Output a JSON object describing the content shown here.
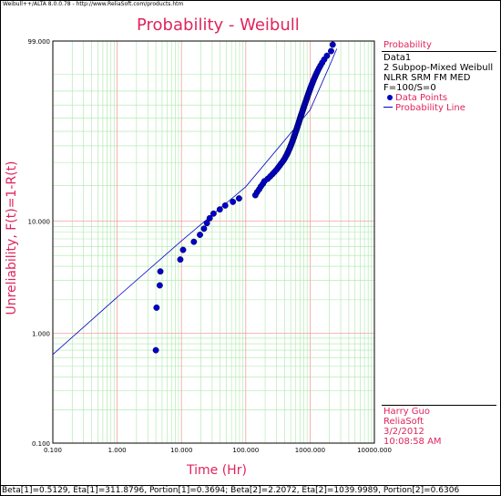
{
  "header": {
    "text": "Weibull++/ALTA 8.0.0.78 - http://www.ReliaSoft.com/products.htm"
  },
  "legend": {
    "title": "Probability",
    "lines": [
      "Data1",
      "2 Subpop-Mixed Weibull",
      "NLRR SRM FM MED",
      "F=100/S=0"
    ],
    "points_label": "Data Points",
    "line_label": "Probability Line"
  },
  "signature": {
    "name": "Harry Guo",
    "company": "ReliaSoft",
    "date": "3/2/2012",
    "time": "10:08:58 AM"
  },
  "footer": {
    "text": "Beta[1]=0.5129, Eta[1]=311.8796, Portion[1]=0.3694; Beta[2]=2.2072, Eta[2]=1039.9989, Portion[2]=0.6306"
  },
  "colors": {
    "accent": "#e0245e",
    "points": "#0000c8",
    "grid_major": "#f4a0a0",
    "grid_minor": "#a8e8a8"
  },
  "chart_data": {
    "type": "scatter",
    "title": "Probability - Weibull",
    "xlabel": "Time (Hr)",
    "ylabel": "Unreliability, F(t)=1-R(t)",
    "x_scale": "log",
    "y_scale": "weibull",
    "xlim": [
      0.1,
      10000
    ],
    "ylim": [
      0.1,
      99
    ],
    "x_ticks": [
      "0.100",
      "1.000",
      "10.000",
      "100.000",
      "1000.000",
      "10000.000"
    ],
    "y_ticks": [
      "0.100",
      "1.000",
      "10.000",
      "99.000"
    ],
    "grid": true,
    "legend_position": "right",
    "series": [
      {
        "name": "Data Points",
        "points": [
          [
            4.0,
            0.7
          ],
          [
            4.1,
            1.7
          ],
          [
            4.6,
            2.7
          ],
          [
            4.7,
            3.6
          ],
          [
            9.6,
            4.6
          ],
          [
            10.6,
            5.6
          ],
          [
            15.6,
            6.6
          ],
          [
            19.4,
            7.6
          ],
          [
            22.4,
            8.6
          ],
          [
            24.9,
            9.6
          ],
          [
            27.5,
            10.6
          ],
          [
            31.5,
            11.6
          ],
          [
            39.5,
            12.6
          ],
          [
            47.9,
            13.6
          ],
          [
            63.1,
            14.6
          ],
          [
            78.6,
            15.6
          ],
          [
            141,
            16.6
          ],
          [
            150,
            17.6
          ],
          [
            162,
            18.6
          ],
          [
            172,
            19.6
          ],
          [
            185,
            20.6
          ],
          [
            195,
            21.6
          ],
          [
            220,
            22.6
          ],
          [
            240,
            23.6
          ],
          [
            260,
            24.6
          ],
          [
            280,
            25.6
          ],
          [
            300,
            26.6
          ],
          [
            318,
            27.6
          ],
          [
            336,
            28.6
          ],
          [
            353,
            29.6
          ],
          [
            373,
            30.6
          ],
          [
            390,
            31.6
          ],
          [
            406,
            32.6
          ],
          [
            420,
            33.6
          ],
          [
            435,
            34.6
          ],
          [
            448,
            35.6
          ],
          [
            460,
            36.6
          ],
          [
            472,
            37.6
          ],
          [
            484,
            38.6
          ],
          [
            495,
            39.6
          ],
          [
            506,
            40.6
          ],
          [
            517,
            41.6
          ],
          [
            528,
            42.6
          ],
          [
            538,
            43.6
          ],
          [
            548,
            44.6
          ],
          [
            558,
            45.6
          ],
          [
            568,
            46.6
          ],
          [
            578,
            47.6
          ],
          [
            588,
            48.6
          ],
          [
            598,
            49.6
          ],
          [
            608,
            50.6
          ],
          [
            618,
            51.6
          ],
          [
            628,
            52.6
          ],
          [
            638,
            53.6
          ],
          [
            648,
            54.6
          ],
          [
            658,
            55.6
          ],
          [
            668,
            56.6
          ],
          [
            678,
            57.6
          ],
          [
            688,
            58.6
          ],
          [
            698,
            59.6
          ],
          [
            708,
            60.6
          ],
          [
            718,
            61.6
          ],
          [
            730,
            62.6
          ],
          [
            742,
            63.6
          ],
          [
            754,
            64.6
          ],
          [
            766,
            65.6
          ],
          [
            778,
            66.6
          ],
          [
            790,
            67.6
          ],
          [
            802,
            68.6
          ],
          [
            815,
            69.6
          ],
          [
            828,
            70.6
          ],
          [
            842,
            71.6
          ],
          [
            856,
            72.6
          ],
          [
            870,
            73.6
          ],
          [
            885,
            74.6
          ],
          [
            900,
            75.6
          ],
          [
            916,
            76.6
          ],
          [
            932,
            77.6
          ],
          [
            949,
            78.6
          ],
          [
            967,
            79.6
          ],
          [
            985,
            80.6
          ],
          [
            1005,
            81.6
          ],
          [
            1026,
            82.6
          ],
          [
            1048,
            83.6
          ],
          [
            1072,
            84.6
          ],
          [
            1098,
            85.6
          ],
          [
            1126,
            86.6
          ],
          [
            1157,
            87.6
          ],
          [
            1191,
            88.6
          ],
          [
            1229,
            89.6
          ],
          [
            1272,
            90.6
          ],
          [
            1322,
            91.6
          ],
          [
            1381,
            92.6
          ],
          [
            1452,
            93.6
          ],
          [
            1541,
            94.6
          ],
          [
            1659,
            95.6
          ],
          [
            1830,
            96.6
          ],
          [
            2122,
            97.6
          ],
          [
            2251,
            98.6
          ]
        ]
      },
      {
        "name": "Probability Line",
        "points": [
          [
            0.1,
            0.64
          ],
          [
            1,
            2.11
          ],
          [
            10,
            6.72
          ],
          [
            100,
            19.5
          ],
          [
            1000,
            66.2
          ],
          [
            2000,
            93.5
          ],
          [
            2600,
            98.0
          ]
        ]
      }
    ]
  }
}
